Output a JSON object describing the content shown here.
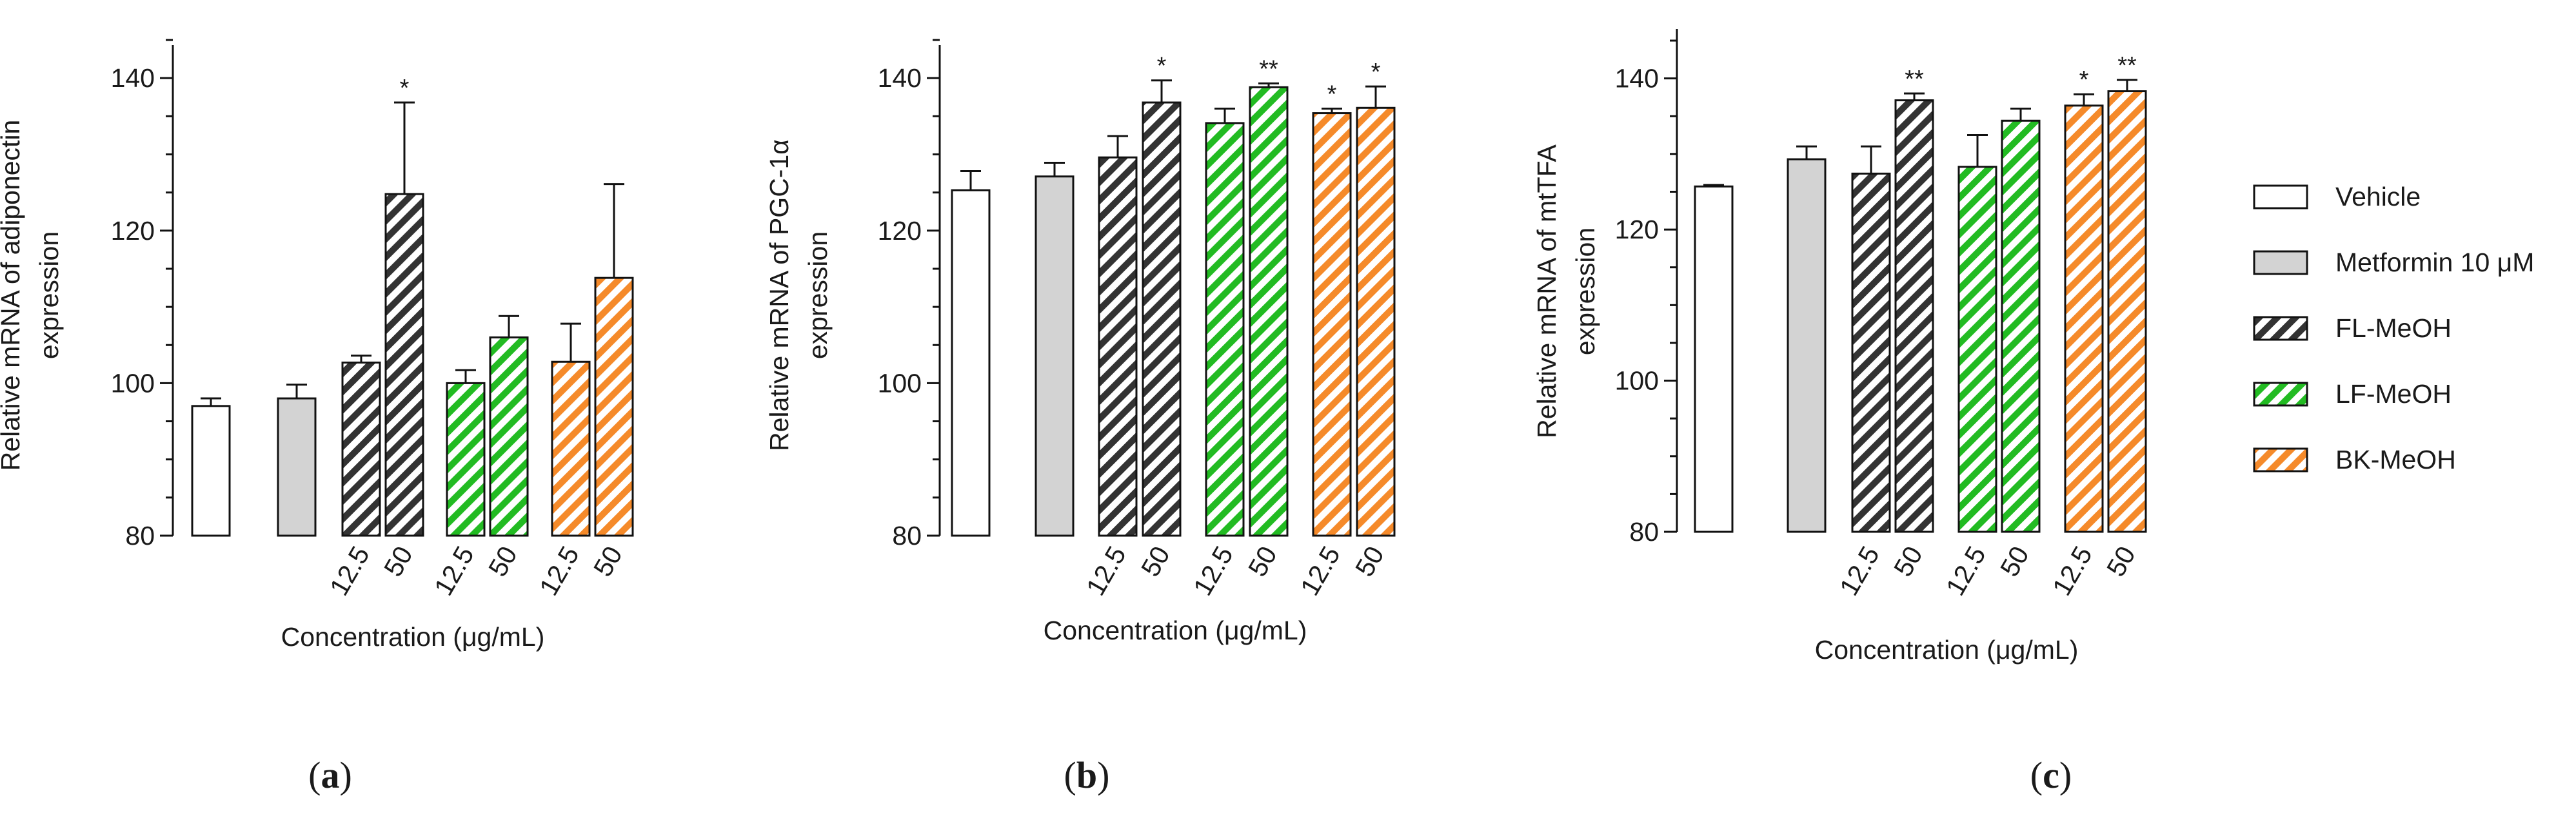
{
  "colors": {
    "vehicle": "#ffffff",
    "metformin": "#d3d3d3",
    "fl": "#333333",
    "lf": "#22bb22",
    "bk": "#f58a2a",
    "stroke": "#111111"
  },
  "legend": {
    "items": [
      {
        "label": "Vehicle",
        "group": "vehicle"
      },
      {
        "label": "Metformin 10 μM",
        "group": "metformin"
      },
      {
        "label": "FL-MeOH",
        "group": "fl"
      },
      {
        "label": "LF-MeOH",
        "group": "lf"
      },
      {
        "label": "BK-MeOH",
        "group": "bk"
      }
    ]
  },
  "chart_data": [
    {
      "type": "bar",
      "panel": "a",
      "panel_label": [
        "(",
        "a",
        ")"
      ],
      "ylabel": [
        "Relative mRNA of adiponectin",
        "expression"
      ],
      "xlabel": "Concentration (μg/mL)",
      "ylim": [
        80,
        145
      ],
      "yticks": [
        80,
        100,
        120,
        140
      ],
      "bars": [
        {
          "group": "vehicle",
          "tick": "",
          "value": 97,
          "error": 1,
          "sig": ""
        },
        {
          "group": "metformin",
          "tick": "",
          "value": 98,
          "error": 1.8,
          "sig": ""
        },
        {
          "group": "fl",
          "tick": "12.5",
          "value": 102.7,
          "error": 0.9,
          "sig": ""
        },
        {
          "group": "fl",
          "tick": "50",
          "value": 124.8,
          "error": 12,
          "sig": "*"
        },
        {
          "group": "lf",
          "tick": "12.5",
          "value": 100,
          "error": 1.7,
          "sig": ""
        },
        {
          "group": "lf",
          "tick": "50",
          "value": 106,
          "error": 2.8,
          "sig": ""
        },
        {
          "group": "bk",
          "tick": "12.5",
          "value": 102.8,
          "error": 5,
          "sig": ""
        },
        {
          "group": "bk",
          "tick": "50",
          "value": 113.8,
          "error": 12.3,
          "sig": ""
        }
      ]
    },
    {
      "type": "bar",
      "panel": "b",
      "panel_label": [
        "(",
        "b",
        ")"
      ],
      "ylabel": [
        "Relative mRNA of PGC-1α",
        "expression"
      ],
      "xlabel": "Concentration (μg/mL)",
      "ylim": [
        80,
        145
      ],
      "yticks": [
        80,
        100,
        120,
        140
      ],
      "bars": [
        {
          "group": "vehicle",
          "tick": "",
          "value": 125.3,
          "error": 2.5,
          "sig": ""
        },
        {
          "group": "metformin",
          "tick": "",
          "value": 127.1,
          "error": 1.8,
          "sig": ""
        },
        {
          "group": "fl",
          "tick": "12.5",
          "value": 129.6,
          "error": 2.8,
          "sig": ""
        },
        {
          "group": "fl",
          "tick": "50",
          "value": 136.8,
          "error": 2.9,
          "sig": "*"
        },
        {
          "group": "lf",
          "tick": "12.5",
          "value": 134.1,
          "error": 1.9,
          "sig": ""
        },
        {
          "group": "lf",
          "tick": "50",
          "value": 138.8,
          "error": 0.5,
          "sig": "**"
        },
        {
          "group": "bk",
          "tick": "12.5",
          "value": 135.4,
          "error": 0.6,
          "sig": "*"
        },
        {
          "group": "bk",
          "tick": "50",
          "value": 136.1,
          "error": 2.8,
          "sig": "*"
        }
      ]
    },
    {
      "type": "bar",
      "panel": "c",
      "panel_label": [
        "(",
        "c",
        ")"
      ],
      "ylabel": [
        "Relative mRNA of mtTFA",
        "expression"
      ],
      "xlabel": "Concentration (μg/mL)",
      "ylim": [
        80,
        145
      ],
      "yticks": [
        80,
        100,
        120,
        140
      ],
      "bars": [
        {
          "group": "vehicle",
          "tick": "",
          "value": 125.7,
          "error": 0.2,
          "sig": ""
        },
        {
          "group": "metformin",
          "tick": "",
          "value": 129.3,
          "error": 1.7,
          "sig": ""
        },
        {
          "group": "fl",
          "tick": "12.5",
          "value": 127.4,
          "error": 3.6,
          "sig": ""
        },
        {
          "group": "fl",
          "tick": "50",
          "value": 137.1,
          "error": 0.9,
          "sig": "**"
        },
        {
          "group": "lf",
          "tick": "12.5",
          "value": 128.3,
          "error": 4.2,
          "sig": ""
        },
        {
          "group": "lf",
          "tick": "50",
          "value": 134.4,
          "error": 1.6,
          "sig": ""
        },
        {
          "group": "bk",
          "tick": "12.5",
          "value": 136.4,
          "error": 1.5,
          "sig": "*"
        },
        {
          "group": "bk",
          "tick": "50",
          "value": 138.3,
          "error": 1.5,
          "sig": "**"
        }
      ]
    }
  ]
}
